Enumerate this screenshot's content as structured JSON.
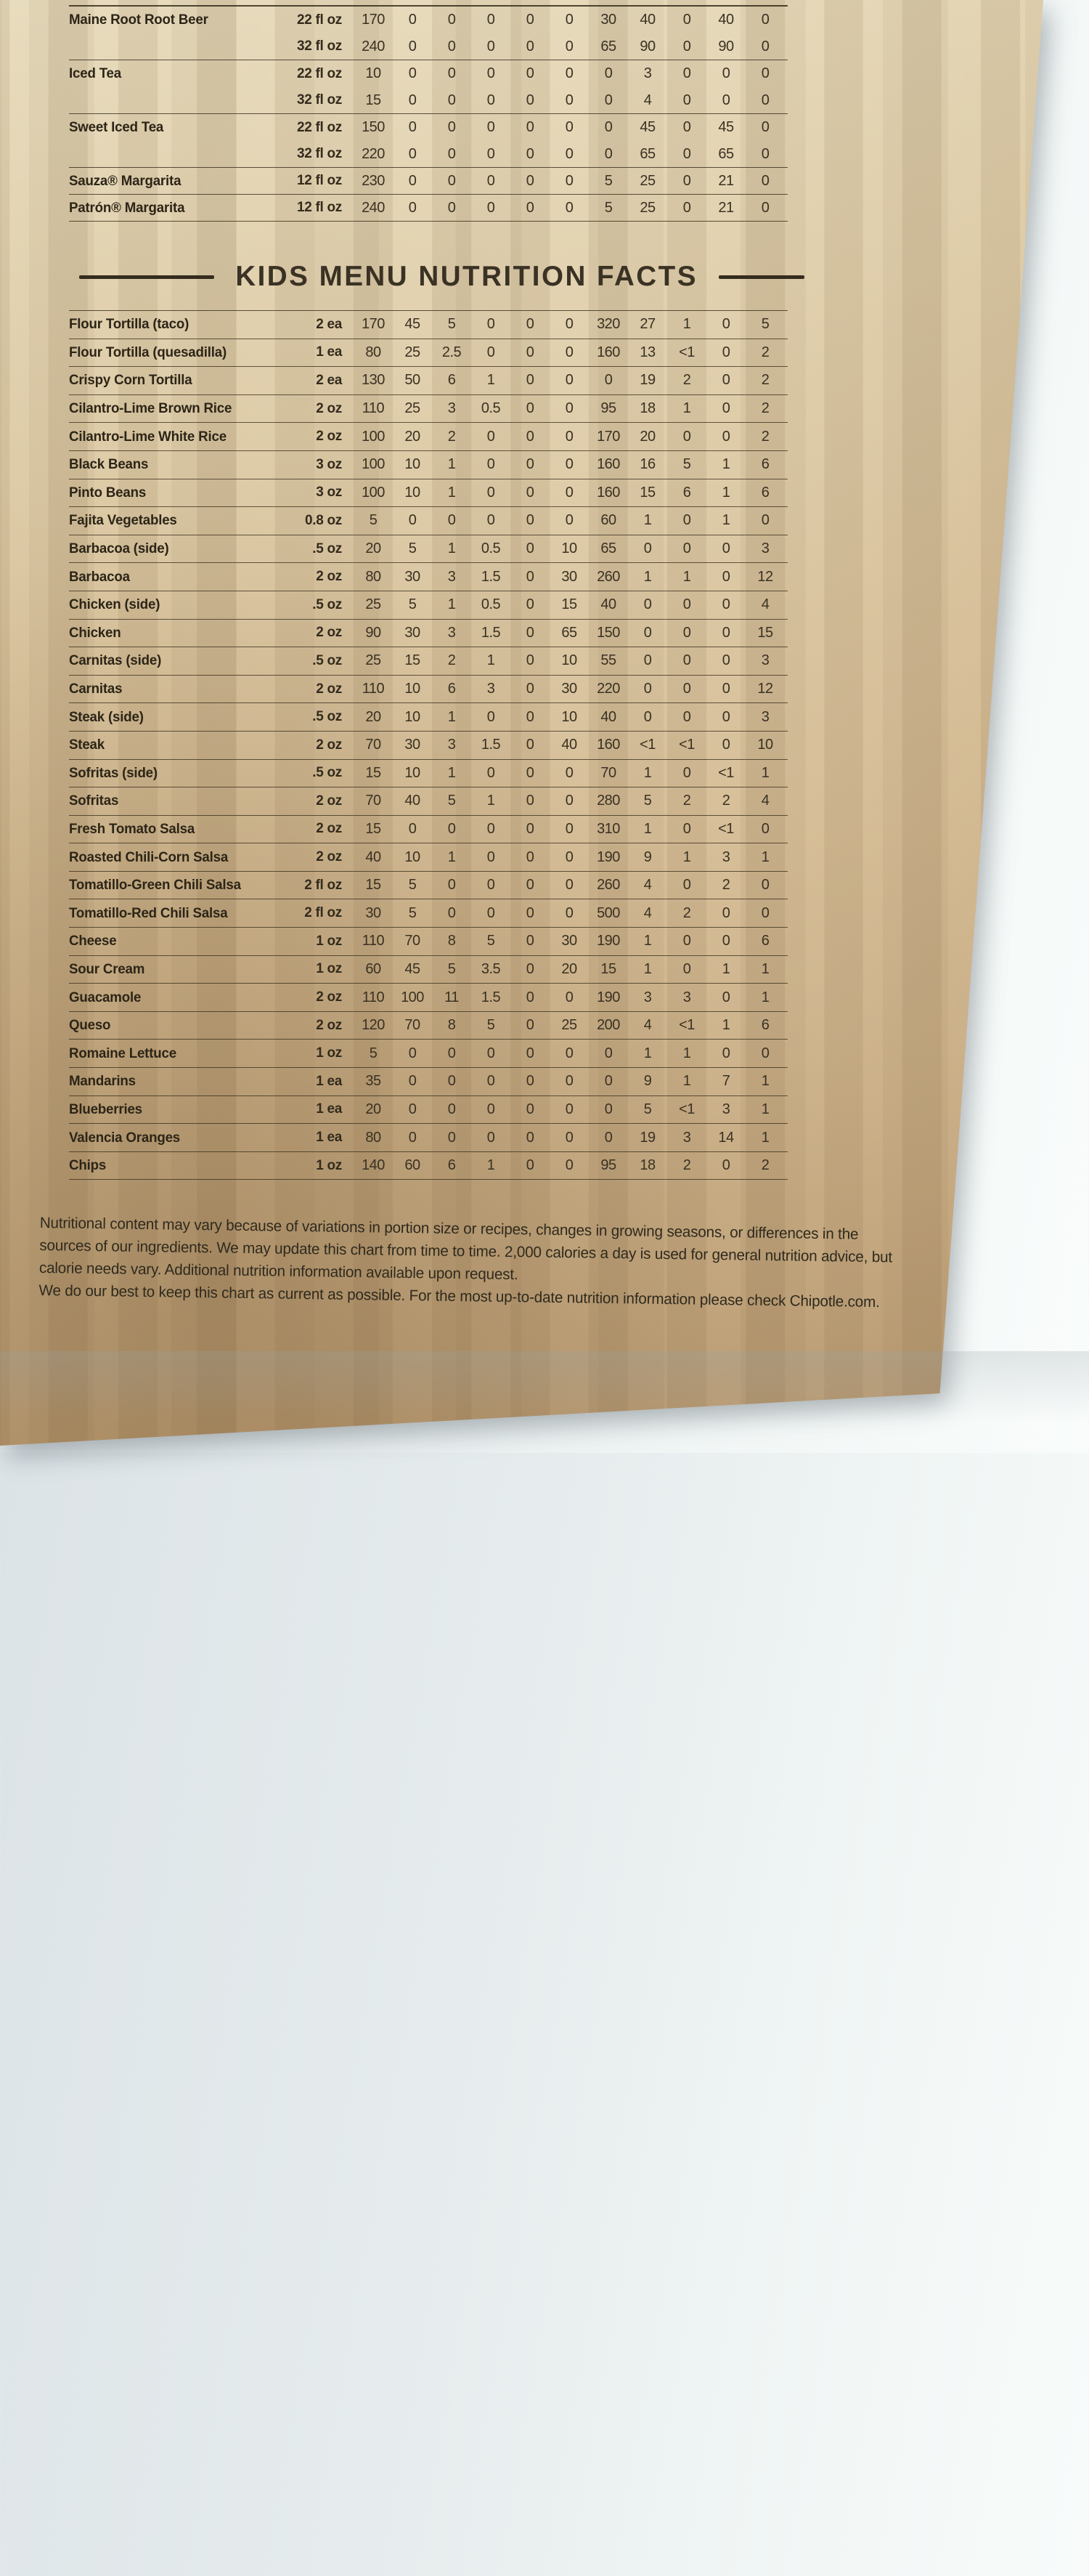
{
  "header": {
    "title": "KIDS MENU NUTRITION FACTS"
  },
  "beverage_table": {
    "rows": [
      {
        "name": "Maine Root Root Beer",
        "serving": "22 fl oz",
        "values": [
          "170",
          "0",
          "0",
          "0",
          "0",
          "0",
          "30",
          "40",
          "0",
          "40",
          "0"
        ],
        "group_end": false
      },
      {
        "name": "",
        "serving": "32 fl oz",
        "values": [
          "240",
          "0",
          "0",
          "0",
          "0",
          "0",
          "65",
          "90",
          "0",
          "90",
          "0"
        ],
        "group_end": true
      },
      {
        "name": "Iced Tea",
        "serving": "22 fl oz",
        "values": [
          "10",
          "0",
          "0",
          "0",
          "0",
          "0",
          "0",
          "3",
          "0",
          "0",
          "0"
        ],
        "group_end": false
      },
      {
        "name": "",
        "serving": "32 fl oz",
        "values": [
          "15",
          "0",
          "0",
          "0",
          "0",
          "0",
          "0",
          "4",
          "0",
          "0",
          "0"
        ],
        "group_end": true
      },
      {
        "name": "Sweet Iced Tea",
        "serving": "22 fl oz",
        "values": [
          "150",
          "0",
          "0",
          "0",
          "0",
          "0",
          "0",
          "45",
          "0",
          "45",
          "0"
        ],
        "group_end": false
      },
      {
        "name": "",
        "serving": "32 fl oz",
        "values": [
          "220",
          "0",
          "0",
          "0",
          "0",
          "0",
          "0",
          "65",
          "0",
          "65",
          "0"
        ],
        "group_end": true
      },
      {
        "name": "Sauza® Margarita",
        "serving": "12 fl oz",
        "values": [
          "230",
          "0",
          "0",
          "0",
          "0",
          "0",
          "5",
          "25",
          "0",
          "21",
          "0"
        ],
        "group_end": true
      },
      {
        "name": "Patrón® Margarita",
        "serving": "12 fl oz",
        "values": [
          "240",
          "0",
          "0",
          "0",
          "0",
          "0",
          "5",
          "25",
          "0",
          "21",
          "0"
        ],
        "group_end": true
      }
    ]
  },
  "kids_table": {
    "rows": [
      {
        "name": "Flour Tortilla (taco)",
        "serving": "2 ea",
        "values": [
          "170",
          "45",
          "5",
          "0",
          "0",
          "0",
          "320",
          "27",
          "1",
          "0",
          "5"
        ]
      },
      {
        "name": "Flour Tortilla (quesadilla)",
        "serving": "1 ea",
        "values": [
          "80",
          "25",
          "2.5",
          "0",
          "0",
          "0",
          "160",
          "13",
          "<1",
          "0",
          "2"
        ]
      },
      {
        "name": "Crispy Corn Tortilla",
        "serving": "2 ea",
        "values": [
          "130",
          "50",
          "6",
          "1",
          "0",
          "0",
          "0",
          "19",
          "2",
          "0",
          "2"
        ]
      },
      {
        "name": "Cilantro-Lime Brown Rice",
        "serving": "2 oz",
        "values": [
          "110",
          "25",
          "3",
          "0.5",
          "0",
          "0",
          "95",
          "18",
          "1",
          "0",
          "2"
        ]
      },
      {
        "name": "Cilantro-Lime White Rice",
        "serving": "2 oz",
        "values": [
          "100",
          "20",
          "2",
          "0",
          "0",
          "0",
          "170",
          "20",
          "0",
          "0",
          "2"
        ]
      },
      {
        "name": "Black Beans",
        "serving": "3 oz",
        "values": [
          "100",
          "10",
          "1",
          "0",
          "0",
          "0",
          "160",
          "16",
          "5",
          "1",
          "6"
        ]
      },
      {
        "name": "Pinto Beans",
        "serving": "3 oz",
        "values": [
          "100",
          "10",
          "1",
          "0",
          "0",
          "0",
          "160",
          "15",
          "6",
          "1",
          "6"
        ]
      },
      {
        "name": "Fajita Vegetables",
        "serving": "0.8 oz",
        "values": [
          "5",
          "0",
          "0",
          "0",
          "0",
          "0",
          "60",
          "1",
          "0",
          "1",
          "0"
        ]
      },
      {
        "name": "Barbacoa (side)",
        "serving": ".5 oz",
        "values": [
          "20",
          "5",
          "1",
          "0.5",
          "0",
          "10",
          "65",
          "0",
          "0",
          "0",
          "3"
        ]
      },
      {
        "name": "Barbacoa",
        "serving": "2 oz",
        "values": [
          "80",
          "30",
          "3",
          "1.5",
          "0",
          "30",
          "260",
          "1",
          "1",
          "0",
          "12"
        ]
      },
      {
        "name": "Chicken (side)",
        "serving": ".5 oz",
        "values": [
          "25",
          "5",
          "1",
          "0.5",
          "0",
          "15",
          "40",
          "0",
          "0",
          "0",
          "4"
        ]
      },
      {
        "name": "Chicken",
        "serving": "2 oz",
        "values": [
          "90",
          "30",
          "3",
          "1.5",
          "0",
          "65",
          "150",
          "0",
          "0",
          "0",
          "15"
        ]
      },
      {
        "name": "Carnitas (side)",
        "serving": ".5 oz",
        "values": [
          "25",
          "15",
          "2",
          "1",
          "0",
          "10",
          "55",
          "0",
          "0",
          "0",
          "3"
        ]
      },
      {
        "name": "Carnitas",
        "serving": "2 oz",
        "values": [
          "110",
          "10",
          "6",
          "3",
          "0",
          "30",
          "220",
          "0",
          "0",
          "0",
          "12"
        ]
      },
      {
        "name": "Steak (side)",
        "serving": ".5 oz",
        "values": [
          "20",
          "10",
          "1",
          "0",
          "0",
          "10",
          "40",
          "0",
          "0",
          "0",
          "3"
        ]
      },
      {
        "name": "Steak",
        "serving": "2 oz",
        "values": [
          "70",
          "30",
          "3",
          "1.5",
          "0",
          "40",
          "160",
          "<1",
          "<1",
          "0",
          "10"
        ]
      },
      {
        "name": "Sofritas (side)",
        "serving": ".5 oz",
        "values": [
          "15",
          "10",
          "1",
          "0",
          "0",
          "0",
          "70",
          "1",
          "0",
          "<1",
          "1"
        ]
      },
      {
        "name": "Sofritas",
        "serving": "2 oz",
        "values": [
          "70",
          "40",
          "5",
          "1",
          "0",
          "0",
          "280",
          "5",
          "2",
          "2",
          "4"
        ]
      },
      {
        "name": "Fresh Tomato Salsa",
        "serving": "2 oz",
        "values": [
          "15",
          "0",
          "0",
          "0",
          "0",
          "0",
          "310",
          "1",
          "0",
          "<1",
          "0"
        ]
      },
      {
        "name": "Roasted Chili-Corn Salsa",
        "serving": "2 oz",
        "values": [
          "40",
          "10",
          "1",
          "0",
          "0",
          "0",
          "190",
          "9",
          "1",
          "3",
          "1"
        ]
      },
      {
        "name": "Tomatillo-Green Chili Salsa",
        "serving": "2 fl oz",
        "values": [
          "15",
          "5",
          "0",
          "0",
          "0",
          "0",
          "260",
          "4",
          "0",
          "2",
          "0"
        ]
      },
      {
        "name": "Tomatillo-Red Chili Salsa",
        "serving": "2 fl oz",
        "values": [
          "30",
          "5",
          "0",
          "0",
          "0",
          "0",
          "500",
          "4",
          "2",
          "0",
          "0"
        ]
      },
      {
        "name": "Cheese",
        "serving": "1 oz",
        "values": [
          "110",
          "70",
          "8",
          "5",
          "0",
          "30",
          "190",
          "1",
          "0",
          "0",
          "6"
        ]
      },
      {
        "name": "Sour Cream",
        "serving": "1 oz",
        "values": [
          "60",
          "45",
          "5",
          "3.5",
          "0",
          "20",
          "15",
          "1",
          "0",
          "1",
          "1"
        ]
      },
      {
        "name": "Guacamole",
        "serving": "2 oz",
        "values": [
          "110",
          "100",
          "11",
          "1.5",
          "0",
          "0",
          "190",
          "3",
          "3",
          "0",
          "1"
        ]
      },
      {
        "name": "Queso",
        "serving": "2 oz",
        "values": [
          "120",
          "70",
          "8",
          "5",
          "0",
          "25",
          "200",
          "4",
          "<1",
          "1",
          "6"
        ]
      },
      {
        "name": "Romaine Lettuce",
        "serving": "1 oz",
        "values": [
          "5",
          "0",
          "0",
          "0",
          "0",
          "0",
          "0",
          "1",
          "1",
          "0",
          "0"
        ]
      },
      {
        "name": "Mandarins",
        "serving": "1 ea",
        "values": [
          "35",
          "0",
          "0",
          "0",
          "0",
          "0",
          "0",
          "9",
          "1",
          "7",
          "1"
        ]
      },
      {
        "name": "Blueberries",
        "serving": "1 ea",
        "values": [
          "20",
          "0",
          "0",
          "0",
          "0",
          "0",
          "0",
          "5",
          "<1",
          "3",
          "1"
        ]
      },
      {
        "name": "Valencia Oranges",
        "serving": "1 ea",
        "values": [
          "80",
          "0",
          "0",
          "0",
          "0",
          "0",
          "0",
          "19",
          "3",
          "14",
          "1"
        ]
      },
      {
        "name": "Chips",
        "serving": "1 oz",
        "values": [
          "140",
          "60",
          "6",
          "1",
          "0",
          "0",
          "95",
          "18",
          "2",
          "0",
          "2"
        ]
      }
    ]
  },
  "footnote": {
    "lines": [
      "Nutritional content may vary because of variations in portion size or recipes, changes in growing seasons, or differences in the",
      "sources of our ingredients. We may update this chart from time to time. 2,000 calories a day is used for general nutrition advice, but",
      "calorie needs vary. Additional nutrition information available upon request.",
      "We do our best to keep this chart as current as possible. For the most up-to-date nutrition information please check Chipotle.com."
    ]
  },
  "doc_code": "STNDRD-SPRGRNS-JAN2020",
  "colors": {
    "paper_light": "#e8dcbe",
    "paper_dark": "#b08f66",
    "ink": "#332b1c",
    "background_fabric": "#e7edee"
  }
}
